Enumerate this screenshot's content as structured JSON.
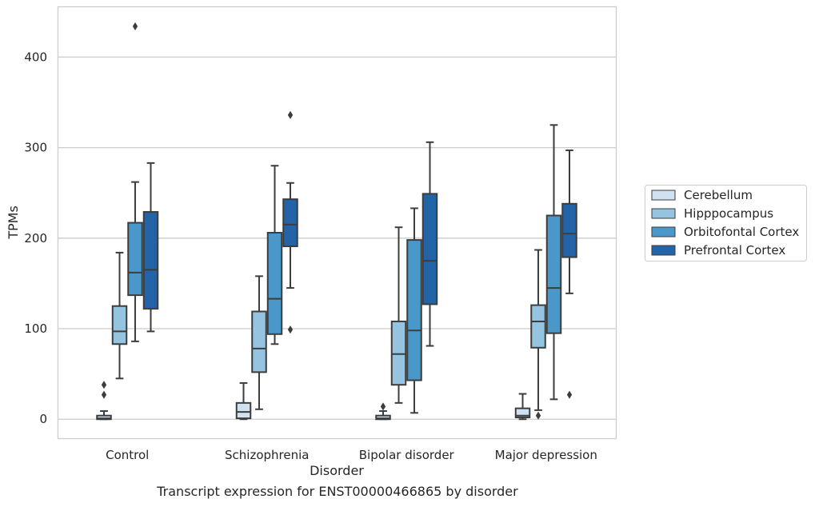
{
  "caption": "Transcript expression for ENST00000466865 by disorder",
  "chart_data": {
    "type": "box",
    "xlabel": "Disorder",
    "ylabel": "TPMs",
    "categories": [
      "Control",
      "Schizophrenia",
      "Bipolar disorder",
      "Major depression"
    ],
    "ylim": [
      -21,
      456
    ],
    "yticks": [
      0,
      100,
      200,
      300,
      400
    ],
    "grid": "horizontal",
    "legend_position": "right",
    "series": [
      {
        "name": "Cerebellum",
        "color": "#d0e1f2",
        "boxes": [
          {
            "whislo": 0,
            "q1": 0,
            "med": 1,
            "q3": 4,
            "whishi": 9,
            "fliers": [
              27,
              38
            ]
          },
          {
            "whislo": 0,
            "q1": 1,
            "med": 8,
            "q3": 18,
            "whishi": 40,
            "fliers": []
          },
          {
            "whislo": 0,
            "q1": 0,
            "med": 1,
            "q3": 4,
            "whishi": 9,
            "fliers": [
              14
            ]
          },
          {
            "whislo": 0,
            "q1": 2,
            "med": 4,
            "q3": 12,
            "whishi": 28,
            "fliers": []
          }
        ]
      },
      {
        "name": "Hipppocampus",
        "color": "#94c4df",
        "boxes": [
          {
            "whislo": 45,
            "q1": 83,
            "med": 97,
            "q3": 125,
            "whishi": 184,
            "fliers": []
          },
          {
            "whislo": 11,
            "q1": 52,
            "med": 78,
            "q3": 119,
            "whishi": 158,
            "fliers": []
          },
          {
            "whislo": 18,
            "q1": 38,
            "med": 72,
            "q3": 108,
            "whishi": 212,
            "fliers": []
          },
          {
            "whislo": 10,
            "q1": 79,
            "med": 108,
            "q3": 126,
            "whishi": 187,
            "fliers": [
              4
            ]
          }
        ]
      },
      {
        "name": "Orbitofontal Cortex",
        "color": "#4a98c9",
        "boxes": [
          {
            "whislo": 86,
            "q1": 137,
            "med": 162,
            "q3": 217,
            "whishi": 262,
            "fliers": [
              434
            ]
          },
          {
            "whislo": 83,
            "q1": 94,
            "med": 133,
            "q3": 206,
            "whishi": 280,
            "fliers": []
          },
          {
            "whislo": 7,
            "q1": 43,
            "med": 98,
            "q3": 198,
            "whishi": 233,
            "fliers": []
          },
          {
            "whislo": 22,
            "q1": 95,
            "med": 145,
            "q3": 225,
            "whishi": 325,
            "fliers": []
          }
        ]
      },
      {
        "name": "Prefrontal Cortex",
        "color": "#2363a8",
        "boxes": [
          {
            "whislo": 97,
            "q1": 122,
            "med": 165,
            "q3": 229,
            "whishi": 283,
            "fliers": []
          },
          {
            "whislo": 145,
            "q1": 191,
            "med": 215,
            "q3": 243,
            "whishi": 261,
            "fliers": [
              99,
              336
            ]
          },
          {
            "whislo": 81,
            "q1": 127,
            "med": 175,
            "q3": 249,
            "whishi": 306,
            "fliers": []
          },
          {
            "whislo": 139,
            "q1": 179,
            "med": 205,
            "q3": 238,
            "whishi": 297,
            "fliers": [
              27
            ]
          }
        ]
      }
    ]
  }
}
